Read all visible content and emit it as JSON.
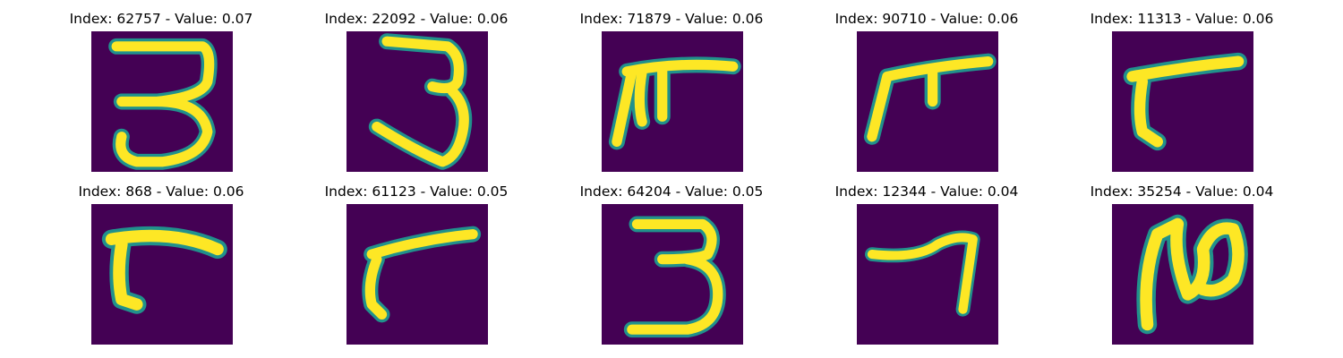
{
  "figure": {
    "background": "#ffffff",
    "colormap": {
      "low": "#440154",
      "mid": "#21918c",
      "high": "#fde725"
    }
  },
  "panels": [
    {
      "title": "Index: 62757 - Value: 0.07",
      "digit": "3"
    },
    {
      "title": "Index: 22092 - Value: 0.06",
      "digit": "3"
    },
    {
      "title": "Index: 71879 - Value: 0.06",
      "digit": "7-like"
    },
    {
      "title": "Index: 90710 - Value: 0.06",
      "digit": "7-like"
    },
    {
      "title": "Index: 11313 - Value: 0.06",
      "digit": "7-like"
    },
    {
      "title": "Index: 868 - Value: 0.06",
      "digit": "7-like"
    },
    {
      "title": "Index: 61123 - Value: 0.05",
      "digit": "7-like"
    },
    {
      "title": "Index: 64204 - Value: 0.05",
      "digit": "3"
    },
    {
      "title": "Index: 12344 - Value: 0.04",
      "digit": "7"
    },
    {
      "title": "Index: 35254 - Value: 0.04",
      "digit": "2-like"
    }
  ]
}
